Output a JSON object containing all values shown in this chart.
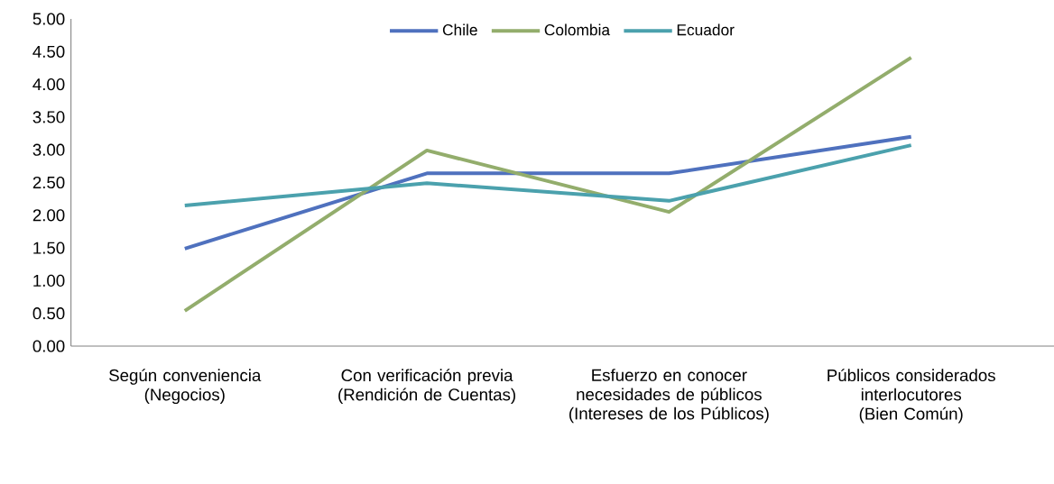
{
  "chart_data": {
    "type": "line",
    "categories": [
      "Según conveniencia (Negocios)",
      "Con verificación previa (Rendición de Cuentas)",
      "Esfuerzo en conocer necesidades de públicos (Intereses de los Públicos)",
      "Públicos considerados interlocutores (Bien Común)"
    ],
    "series": [
      {
        "name": "Chile",
        "color": "#4f71be",
        "values": [
          1.49,
          2.64,
          2.64,
          3.2
        ]
      },
      {
        "name": "Colombia",
        "color": "#93ad6c",
        "values": [
          0.54,
          2.99,
          2.05,
          4.41
        ]
      },
      {
        "name": "Ecuador",
        "color": "#4ba1ad",
        "values": [
          2.15,
          2.49,
          2.22,
          3.07
        ]
      }
    ],
    "ylim": [
      0,
      5
    ],
    "yticks": [
      {
        "value": 0,
        "label": "0.00"
      },
      {
        "value": 0.5,
        "label": "0.50"
      },
      {
        "value": 1,
        "label": "1.00"
      },
      {
        "value": 1.5,
        "label": "1.50"
      },
      {
        "value": 2,
        "label": "2.00"
      },
      {
        "value": 2.5,
        "label": "2.50"
      },
      {
        "value": 3,
        "label": "3.00"
      },
      {
        "value": 3.5,
        "label": "3.50"
      },
      {
        "value": 4,
        "label": "4.00"
      },
      {
        "value": 4.5,
        "label": "4.50"
      },
      {
        "value": 5,
        "label": "5.00"
      }
    ],
    "legend": "top",
    "grid": false,
    "marker": "none",
    "line_style": "solid"
  }
}
